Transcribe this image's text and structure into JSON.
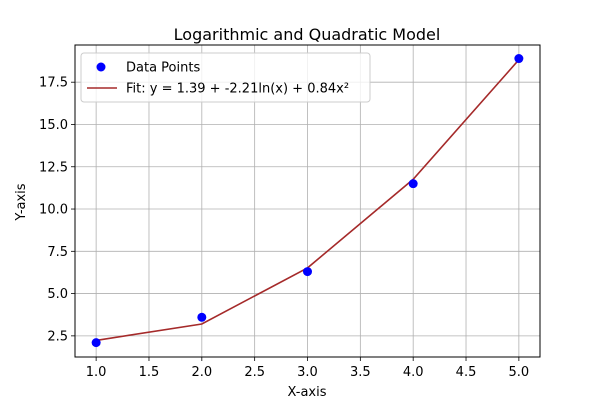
{
  "chart_data": {
    "type": "line",
    "title": "Logarithmic and Quadratic Model",
    "xlabel": "X-axis",
    "ylabel": "Y-axis",
    "xlim": [
      0.8,
      5.2
    ],
    "ylim": [
      1.25,
      19.7
    ],
    "x_ticks": [
      1.0,
      1.5,
      2.0,
      2.5,
      3.0,
      3.5,
      4.0,
      4.5,
      5.0
    ],
    "x_tick_labels": [
      "1.0",
      "1.5",
      "2.0",
      "2.5",
      "3.0",
      "3.5",
      "4.0",
      "4.5",
      "5.0"
    ],
    "y_ticks": [
      2.5,
      5.0,
      7.5,
      10.0,
      12.5,
      15.0,
      17.5
    ],
    "y_tick_labels": [
      "2.5",
      "5.0",
      "7.5",
      "10.0",
      "12.5",
      "15.0",
      "17.5"
    ],
    "grid": true,
    "legend_position": "top-left",
    "series": [
      {
        "name": "Data Points",
        "kind": "scatter",
        "color": "#0000ff",
        "x": [
          1,
          2,
          3,
          4,
          5
        ],
        "y": [
          2.1,
          3.6,
          6.3,
          11.5,
          18.9
        ]
      },
      {
        "name": "Fit: y = 1.39 + -2.21ln(x) + 0.84x²",
        "kind": "line",
        "color": "#a52a2a",
        "x": [
          1,
          2,
          3,
          4,
          5
        ],
        "y": [
          2.23,
          3.2,
          6.52,
          11.76,
          18.83
        ]
      }
    ]
  }
}
